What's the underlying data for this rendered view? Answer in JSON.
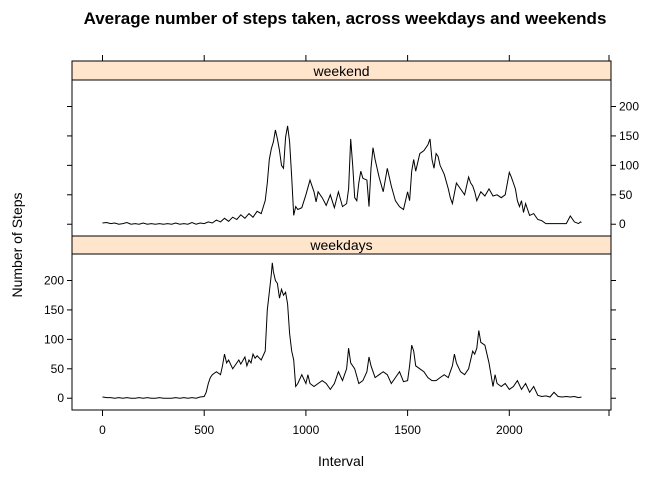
{
  "chart_data": {
    "type": "line",
    "title": "Average number of steps taken, across weekdays and weekends",
    "xlabel": "Interval",
    "ylabel": "Number of Steps",
    "xlim": [
      -150,
      2500
    ],
    "ylim": [
      -20,
      245
    ],
    "x_ticks": [
      0,
      500,
      1000,
      1500,
      2000
    ],
    "y_ticks": [
      0,
      50,
      100,
      150,
      200
    ],
    "strip_color": "#ffe5cc",
    "line_color": "#000000",
    "panels": [
      {
        "name": "weekend",
        "y_axis_side": "right",
        "points": [
          [
            0,
            2
          ],
          [
            20,
            3
          ],
          [
            40,
            1
          ],
          [
            60,
            2
          ],
          [
            80,
            0
          ],
          [
            100,
            1
          ],
          [
            120,
            3
          ],
          [
            140,
            0
          ],
          [
            160,
            1
          ],
          [
            180,
            0
          ],
          [
            200,
            2
          ],
          [
            220,
            0
          ],
          [
            240,
            1
          ],
          [
            260,
            0
          ],
          [
            280,
            1
          ],
          [
            300,
            0
          ],
          [
            320,
            1
          ],
          [
            340,
            0
          ],
          [
            360,
            2
          ],
          [
            380,
            0
          ],
          [
            400,
            1
          ],
          [
            420,
            0
          ],
          [
            440,
            3
          ],
          [
            460,
            0
          ],
          [
            480,
            2
          ],
          [
            500,
            1
          ],
          [
            520,
            4
          ],
          [
            540,
            2
          ],
          [
            560,
            7
          ],
          [
            580,
            4
          ],
          [
            600,
            10
          ],
          [
            620,
            5
          ],
          [
            640,
            12
          ],
          [
            660,
            8
          ],
          [
            680,
            16
          ],
          [
            700,
            10
          ],
          [
            720,
            18
          ],
          [
            740,
            12
          ],
          [
            760,
            22
          ],
          [
            780,
            18
          ],
          [
            800,
            40
          ],
          [
            810,
            70
          ],
          [
            820,
            110
          ],
          [
            830,
            128
          ],
          [
            840,
            140
          ],
          [
            850,
            160
          ],
          [
            860,
            145
          ],
          [
            870,
            125
          ],
          [
            880,
            100
          ],
          [
            890,
            95
          ],
          [
            900,
            148
          ],
          [
            910,
            167
          ],
          [
            920,
            140
          ],
          [
            930,
            80
          ],
          [
            940,
            15
          ],
          [
            950,
            30
          ],
          [
            960,
            25
          ],
          [
            980,
            28
          ],
          [
            1000,
            50
          ],
          [
            1020,
            75
          ],
          [
            1040,
            55
          ],
          [
            1050,
            38
          ],
          [
            1060,
            55
          ],
          [
            1080,
            45
          ],
          [
            1100,
            32
          ],
          [
            1120,
            50
          ],
          [
            1140,
            28
          ],
          [
            1160,
            55
          ],
          [
            1180,
            30
          ],
          [
            1200,
            35
          ],
          [
            1210,
            60
          ],
          [
            1220,
            145
          ],
          [
            1230,
            100
          ],
          [
            1240,
            45
          ],
          [
            1250,
            40
          ],
          [
            1260,
            70
          ],
          [
            1270,
            90
          ],
          [
            1280,
            78
          ],
          [
            1300,
            75
          ],
          [
            1310,
            30
          ],
          [
            1320,
            95
          ],
          [
            1330,
            130
          ],
          [
            1340,
            110
          ],
          [
            1350,
            95
          ],
          [
            1360,
            80
          ],
          [
            1380,
            55
          ],
          [
            1400,
            95
          ],
          [
            1420,
            65
          ],
          [
            1440,
            40
          ],
          [
            1460,
            30
          ],
          [
            1480,
            25
          ],
          [
            1500,
            55
          ],
          [
            1510,
            40
          ],
          [
            1520,
            90
          ],
          [
            1530,
            110
          ],
          [
            1540,
            90
          ],
          [
            1560,
            120
          ],
          [
            1580,
            125
          ],
          [
            1600,
            135
          ],
          [
            1610,
            145
          ],
          [
            1620,
            110
          ],
          [
            1630,
            95
          ],
          [
            1640,
            120
          ],
          [
            1650,
            115
          ],
          [
            1660,
            100
          ],
          [
            1680,
            85
          ],
          [
            1700,
            60
          ],
          [
            1710,
            45
          ],
          [
            1720,
            35
          ],
          [
            1740,
            70
          ],
          [
            1760,
            60
          ],
          [
            1780,
            50
          ],
          [
            1800,
            80
          ],
          [
            1810,
            70
          ],
          [
            1820,
            65
          ],
          [
            1830,
            55
          ],
          [
            1840,
            40
          ],
          [
            1860,
            55
          ],
          [
            1880,
            48
          ],
          [
            1900,
            60
          ],
          [
            1920,
            48
          ],
          [
            1940,
            50
          ],
          [
            1960,
            45
          ],
          [
            1980,
            50
          ],
          [
            2000,
            88
          ],
          [
            2010,
            80
          ],
          [
            2020,
            70
          ],
          [
            2030,
            60
          ],
          [
            2040,
            40
          ],
          [
            2050,
            30
          ],
          [
            2060,
            40
          ],
          [
            2070,
            20
          ],
          [
            2080,
            35
          ],
          [
            2090,
            25
          ],
          [
            2100,
            15
          ],
          [
            2120,
            18
          ],
          [
            2140,
            8
          ],
          [
            2160,
            6
          ],
          [
            2180,
            1
          ],
          [
            2200,
            1
          ],
          [
            2220,
            1
          ],
          [
            2240,
            1
          ],
          [
            2260,
            1
          ],
          [
            2280,
            1
          ],
          [
            2300,
            14
          ],
          [
            2320,
            4
          ],
          [
            2340,
            1
          ],
          [
            2350,
            4
          ],
          [
            2355,
            3
          ]
        ]
      },
      {
        "name": "weekdays",
        "y_axis_side": "left",
        "points": [
          [
            0,
            2
          ],
          [
            20,
            1
          ],
          [
            40,
            1
          ],
          [
            60,
            0
          ],
          [
            80,
            1
          ],
          [
            100,
            0
          ],
          [
            120,
            1
          ],
          [
            140,
            0
          ],
          [
            160,
            0
          ],
          [
            180,
            1
          ],
          [
            200,
            0
          ],
          [
            220,
            1
          ],
          [
            240,
            0
          ],
          [
            260,
            0
          ],
          [
            280,
            1
          ],
          [
            300,
            0
          ],
          [
            320,
            0
          ],
          [
            340,
            0
          ],
          [
            360,
            1
          ],
          [
            380,
            0
          ],
          [
            400,
            1
          ],
          [
            420,
            0
          ],
          [
            440,
            1
          ],
          [
            460,
            0
          ],
          [
            480,
            2
          ],
          [
            500,
            3
          ],
          [
            510,
            10
          ],
          [
            520,
            25
          ],
          [
            530,
            35
          ],
          [
            540,
            40
          ],
          [
            560,
            45
          ],
          [
            580,
            40
          ],
          [
            590,
            55
          ],
          [
            600,
            75
          ],
          [
            610,
            60
          ],
          [
            620,
            65
          ],
          [
            640,
            50
          ],
          [
            660,
            60
          ],
          [
            670,
            65
          ],
          [
            680,
            58
          ],
          [
            700,
            70
          ],
          [
            710,
            55
          ],
          [
            720,
            65
          ],
          [
            730,
            60
          ],
          [
            740,
            75
          ],
          [
            750,
            68
          ],
          [
            760,
            72
          ],
          [
            780,
            65
          ],
          [
            800,
            80
          ],
          [
            810,
            150
          ],
          [
            820,
            180
          ],
          [
            830,
            210
          ],
          [
            835,
            230
          ],
          [
            840,
            215
          ],
          [
            850,
            200
          ],
          [
            860,
            195
          ],
          [
            870,
            170
          ],
          [
            880,
            185
          ],
          [
            890,
            175
          ],
          [
            900,
            180
          ],
          [
            910,
            160
          ],
          [
            920,
            110
          ],
          [
            930,
            80
          ],
          [
            940,
            65
          ],
          [
            950,
            20
          ],
          [
            960,
            25
          ],
          [
            980,
            40
          ],
          [
            1000,
            25
          ],
          [
            1010,
            40
          ],
          [
            1020,
            25
          ],
          [
            1040,
            20
          ],
          [
            1060,
            25
          ],
          [
            1080,
            30
          ],
          [
            1100,
            25
          ],
          [
            1120,
            15
          ],
          [
            1140,
            25
          ],
          [
            1160,
            45
          ],
          [
            1180,
            30
          ],
          [
            1200,
            50
          ],
          [
            1210,
            85
          ],
          [
            1220,
            60
          ],
          [
            1240,
            50
          ],
          [
            1260,
            25
          ],
          [
            1280,
            30
          ],
          [
            1300,
            45
          ],
          [
            1310,
            70
          ],
          [
            1320,
            55
          ],
          [
            1340,
            35
          ],
          [
            1360,
            40
          ],
          [
            1380,
            45
          ],
          [
            1400,
            40
          ],
          [
            1420,
            25
          ],
          [
            1440,
            35
          ],
          [
            1460,
            45
          ],
          [
            1480,
            28
          ],
          [
            1500,
            30
          ],
          [
            1510,
            55
          ],
          [
            1520,
            90
          ],
          [
            1530,
            80
          ],
          [
            1540,
            55
          ],
          [
            1560,
            50
          ],
          [
            1580,
            45
          ],
          [
            1600,
            35
          ],
          [
            1620,
            30
          ],
          [
            1640,
            30
          ],
          [
            1660,
            35
          ],
          [
            1680,
            40
          ],
          [
            1700,
            35
          ],
          [
            1710,
            45
          ],
          [
            1720,
            55
          ],
          [
            1730,
            75
          ],
          [
            1740,
            60
          ],
          [
            1760,
            45
          ],
          [
            1780,
            40
          ],
          [
            1800,
            50
          ],
          [
            1820,
            80
          ],
          [
            1830,
            75
          ],
          [
            1840,
            85
          ],
          [
            1850,
            115
          ],
          [
            1860,
            95
          ],
          [
            1880,
            90
          ],
          [
            1900,
            60
          ],
          [
            1920,
            20
          ],
          [
            1930,
            40
          ],
          [
            1940,
            25
          ],
          [
            1960,
            20
          ],
          [
            1980,
            25
          ],
          [
            2000,
            15
          ],
          [
            2020,
            20
          ],
          [
            2040,
            30
          ],
          [
            2060,
            15
          ],
          [
            2080,
            25
          ],
          [
            2100,
            10
          ],
          [
            2120,
            20
          ],
          [
            2140,
            5
          ],
          [
            2160,
            3
          ],
          [
            2180,
            4
          ],
          [
            2200,
            2
          ],
          [
            2220,
            10
          ],
          [
            2240,
            3
          ],
          [
            2260,
            2
          ],
          [
            2280,
            3
          ],
          [
            2300,
            2
          ],
          [
            2320,
            3
          ],
          [
            2340,
            1
          ],
          [
            2355,
            2
          ]
        ]
      }
    ]
  }
}
